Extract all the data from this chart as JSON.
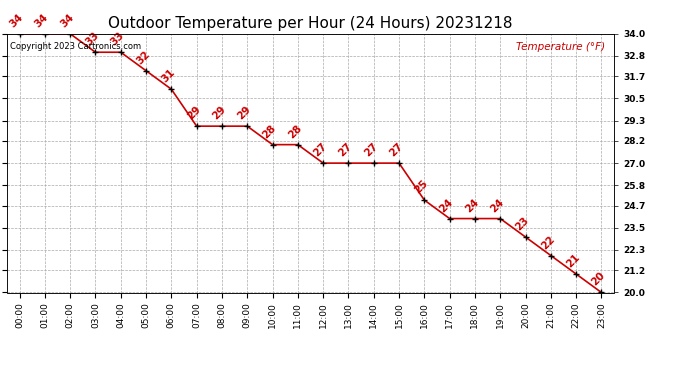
{
  "title": "Outdoor Temperature per Hour (24 Hours) 20231218",
  "copyright_text": "Copyright 2023 Cartronics.com",
  "legend_label": "Temperature (°F)",
  "hours": [
    "00:00",
    "01:00",
    "02:00",
    "03:00",
    "04:00",
    "05:00",
    "06:00",
    "07:00",
    "08:00",
    "09:00",
    "10:00",
    "11:00",
    "12:00",
    "13:00",
    "14:00",
    "15:00",
    "16:00",
    "17:00",
    "18:00",
    "19:00",
    "20:00",
    "21:00",
    "22:00",
    "23:00"
  ],
  "temperatures": [
    34,
    34,
    34,
    33,
    33,
    32,
    31,
    29,
    29,
    29,
    28,
    28,
    27,
    27,
    27,
    27,
    25,
    24,
    24,
    24,
    23,
    22,
    21,
    20
  ],
  "temp_labels": [
    "34",
    "34",
    "34",
    "33",
    "33",
    "32",
    "31",
    "29",
    "29",
    "29",
    "28",
    "28",
    "27",
    "27",
    "27",
    "27",
    "25",
    "24",
    "24",
    "24",
    "23",
    "22",
    "21",
    "20"
  ],
  "line_color": "#cc0000",
  "marker_color": "#000000",
  "label_color": "#cc0000",
  "bg_color": "#ffffff",
  "grid_color": "#aaaaaa",
  "ylim_min": 20.0,
  "ylim_max": 34.0,
  "yticks": [
    20.0,
    21.2,
    22.3,
    23.5,
    24.7,
    25.8,
    27.0,
    28.2,
    29.3,
    30.5,
    31.7,
    32.8,
    34.0
  ],
  "title_fontsize": 11,
  "label_fontsize": 7.5,
  "axis_fontsize": 6.5,
  "copyright_fontsize": 6.0,
  "legend_fontsize": 7.5
}
